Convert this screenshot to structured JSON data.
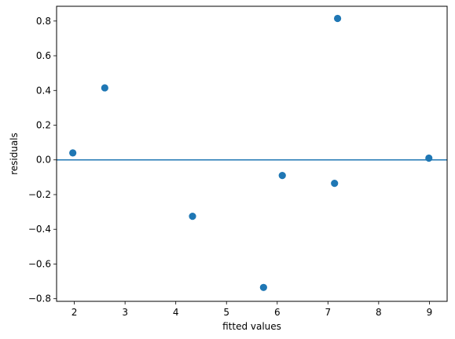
{
  "chart_data": {
    "type": "scatter",
    "xlabel": "fitted values",
    "ylabel": "residuals",
    "xlim": [
      1.65,
      9.35
    ],
    "ylim": [
      -0.815,
      0.885
    ],
    "x_ticks": [
      2,
      3,
      4,
      5,
      6,
      7,
      8,
      9
    ],
    "y_ticks": [
      -0.8,
      -0.6,
      -0.4,
      -0.2,
      0.0,
      0.2,
      0.4,
      0.6,
      0.8
    ],
    "x_tick_labels": [
      "2",
      "3",
      "4",
      "5",
      "6",
      "7",
      "8",
      "9"
    ],
    "y_tick_labels": [
      "−0.8",
      "−0.6",
      "−0.4",
      "−0.2",
      "0.0",
      "0.2",
      "0.4",
      "0.6",
      "0.8"
    ],
    "points": [
      {
        "x": 1.97,
        "y": 0.04
      },
      {
        "x": 2.6,
        "y": 0.415
      },
      {
        "x": 4.33,
        "y": -0.325
      },
      {
        "x": 5.73,
        "y": -0.735
      },
      {
        "x": 6.1,
        "y": -0.09
      },
      {
        "x": 7.13,
        "y": -0.135
      },
      {
        "x": 7.19,
        "y": 0.815
      },
      {
        "x": 8.99,
        "y": 0.01
      }
    ],
    "reference_line_y": 0.0,
    "grid": false,
    "marker_color": "#1f77b4",
    "line_color": "#1f77b4"
  }
}
